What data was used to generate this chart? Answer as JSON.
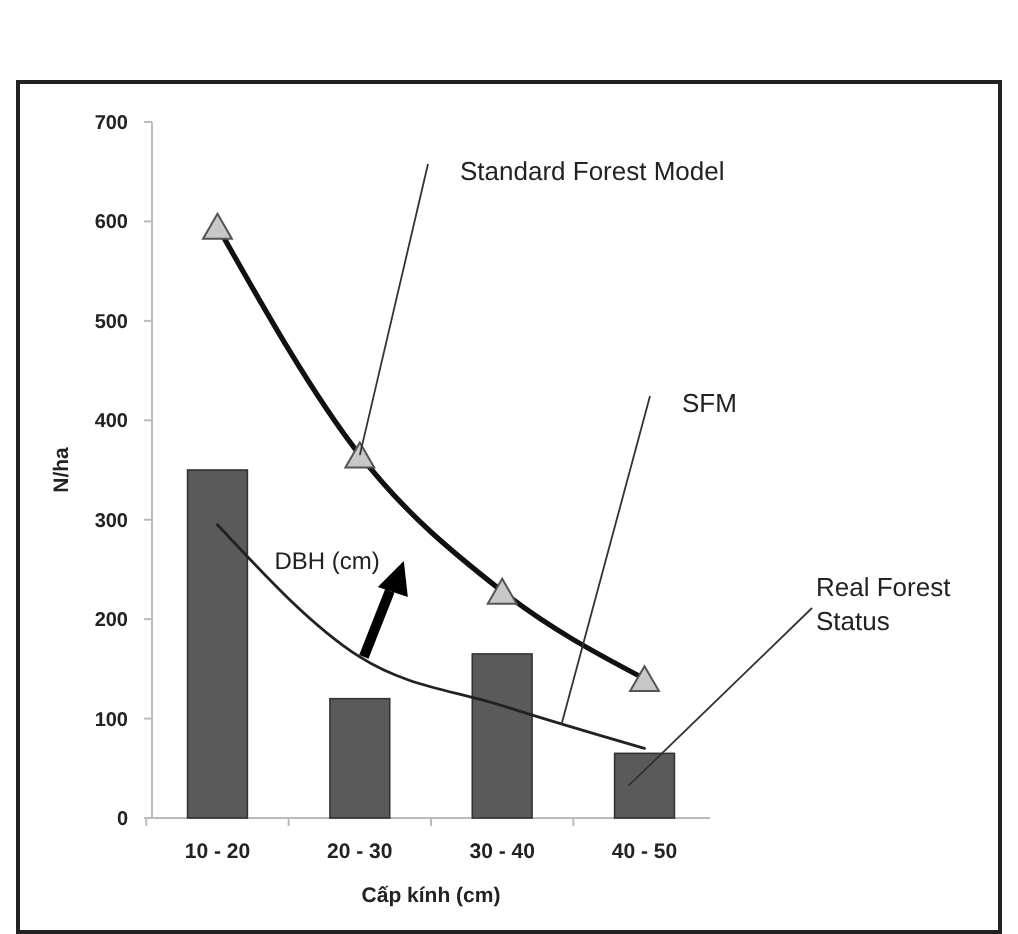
{
  "chart_data": {
    "type": "bar",
    "xlabel": "Cấp kính (cm)",
    "ylabel": "N/ha",
    "categories": [
      "10 - 20",
      "20 - 30",
      "30 - 40",
      "40 - 50"
    ],
    "series": [
      {
        "name": "Real Forest Status",
        "color": "#5a5a5a",
        "values": [
          350,
          120,
          165,
          65
        ]
      },
      {
        "name": "Standard Forest Model",
        "type": "line",
        "color": "#111111",
        "marker": "triangle",
        "values": [
          595,
          365,
          228,
          140
        ]
      },
      {
        "name": "SFM",
        "type": "line",
        "color": "#222222",
        "marker": "none",
        "values": [
          295,
          162,
          113,
          70
        ]
      }
    ],
    "ylim": [
      0,
      700
    ],
    "yticks": [
      0,
      100,
      200,
      300,
      400,
      500,
      600,
      700
    ],
    "annotations": [
      {
        "text": "DBH (cm)",
        "x": "20 - 30",
        "y": 162
      }
    ]
  }
}
